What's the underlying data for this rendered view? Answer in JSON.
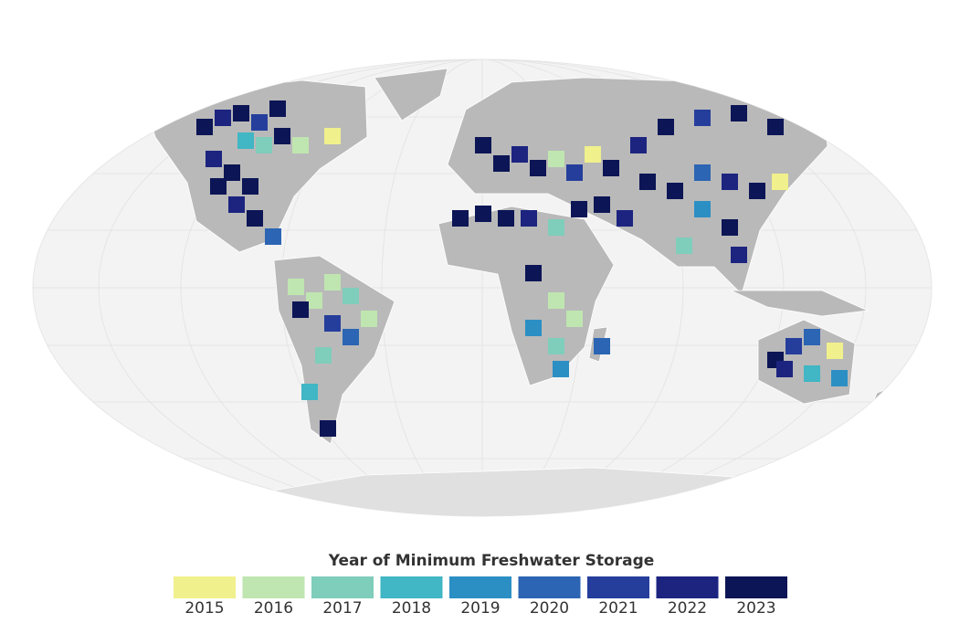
{
  "legend": {
    "title": "Year of Minimum Freshwater Storage",
    "items": [
      {
        "label": "2015",
        "color": "#f0f08c"
      },
      {
        "label": "2016",
        "color": "#bfe6b0"
      },
      {
        "label": "2017",
        "color": "#7fcdbb"
      },
      {
        "label": "2018",
        "color": "#41b6c4"
      },
      {
        "label": "2019",
        "color": "#2c8fc4"
      },
      {
        "label": "2020",
        "color": "#2b65b3"
      },
      {
        "label": "2021",
        "color": "#253e9c"
      },
      {
        "label": "2022",
        "color": "#1c2480"
      },
      {
        "label": "2023",
        "color": "#0c1555"
      }
    ]
  }
}
